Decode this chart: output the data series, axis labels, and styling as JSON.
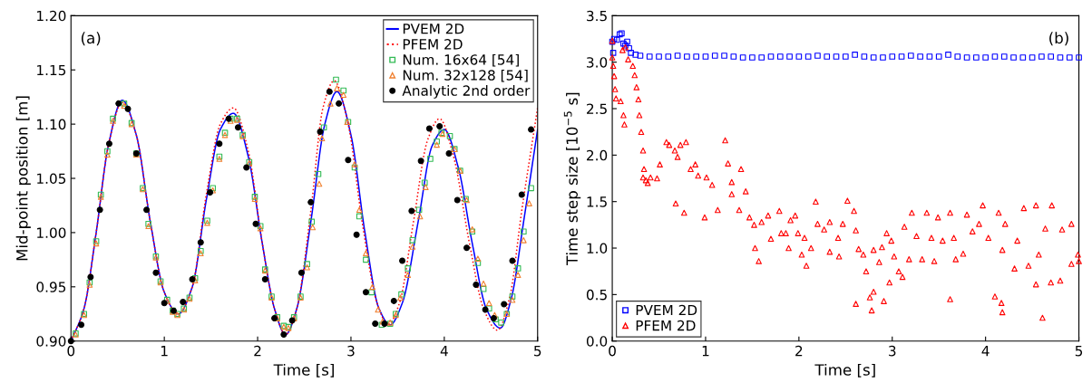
{
  "chart_data": [
    {
      "type": "line",
      "xlabel": "Time [s]",
      "ylabel": "Mid-point position [m]",
      "annotations": [
        "(a)"
      ],
      "xlim": [
        0,
        5
      ],
      "ylim": [
        0.9,
        1.2
      ],
      "xticks": [
        0,
        1,
        2,
        3,
        4,
        5
      ],
      "yticks": [
        {
          "value": 0.9,
          "label": "0.90"
        },
        {
          "value": 0.95,
          "label": "0.95"
        },
        {
          "value": 1.0,
          "label": "1.00"
        },
        {
          "value": 1.05,
          "label": "1.05"
        },
        {
          "value": 1.1,
          "label": "1.10"
        },
        {
          "value": 1.15,
          "label": "1.15"
        },
        {
          "value": 1.2,
          "label": "1.20"
        }
      ],
      "grid": false,
      "legend": "top right",
      "series": [
        {
          "name": "PVEM 2D",
          "color": "#0000ff",
          "line_style": "solid",
          "marker": "none",
          "x": [
            0,
            0.14,
            0.27,
            0.4,
            0.55,
            0.7,
            0.85,
            1.0,
            1.15,
            1.3,
            1.45,
            1.6,
            1.74,
            1.9,
            2.05,
            2.18,
            2.3,
            2.42,
            2.57,
            2.72,
            2.85,
            3.0,
            3.15,
            3.3,
            3.42,
            3.55,
            3.72,
            3.87,
            4.0,
            4.15,
            4.3,
            4.45,
            4.6,
            4.72,
            4.85,
            5.0
          ],
          "values": [
            0.9,
            0.93,
            1.0,
            1.08,
            1.122,
            1.09,
            1.01,
            0.945,
            0.925,
            0.95,
            1.03,
            1.095,
            1.11,
            1.07,
            0.99,
            0.93,
            0.906,
            0.93,
            1.01,
            1.1,
            1.13,
            1.09,
            1.0,
            0.93,
            0.915,
            0.935,
            1.01,
            1.08,
            1.095,
            1.06,
            0.99,
            0.93,
            0.912,
            0.94,
            1.01,
            1.095
          ]
        },
        {
          "name": "PFEM 2D",
          "color": "#ff0000",
          "line_style": "dotted",
          "marker": "none",
          "x": [
            0,
            0.14,
            0.27,
            0.4,
            0.55,
            0.7,
            0.85,
            1.0,
            1.15,
            1.3,
            1.45,
            1.6,
            1.74,
            1.9,
            2.05,
            2.18,
            2.3,
            2.42,
            2.57,
            2.7,
            2.82,
            2.97,
            3.12,
            3.28,
            3.4,
            3.52,
            3.67,
            3.82,
            3.95,
            4.1,
            4.27,
            4.42,
            4.57,
            4.7,
            4.83,
            5.0
          ],
          "values": [
            0.9,
            0.93,
            1.0,
            1.08,
            1.12,
            1.09,
            1.01,
            0.945,
            0.925,
            0.95,
            1.035,
            1.1,
            1.115,
            1.075,
            0.99,
            0.93,
            0.906,
            0.93,
            1.02,
            1.115,
            1.14,
            1.1,
            1.01,
            0.935,
            0.915,
            0.935,
            1.01,
            1.085,
            1.105,
            1.07,
            0.99,
            0.93,
            0.91,
            0.94,
            1.02,
            1.115
          ]
        },
        {
          "name": "Num. 16x64 [54]",
          "type": "scatter",
          "color": "#33bb55",
          "marker": "square",
          "x": [
            0.05,
            0.14,
            0.2,
            0.27,
            0.32,
            0.39,
            0.45,
            0.57,
            0.65,
            0.7,
            0.77,
            0.83,
            0.91,
            0.96,
            1.03,
            1.09,
            1.14,
            1.21,
            1.27,
            1.33,
            1.39,
            1.46,
            1.52,
            1.59,
            1.65,
            1.71,
            1.78,
            1.84,
            1.91,
            1.97,
            2.03,
            2.08,
            2.15,
            2.21,
            2.28,
            2.33,
            2.39,
            2.46,
            2.53,
            2.58,
            2.65,
            2.71,
            2.84,
            2.92,
            2.97,
            3.04,
            3.09,
            3.16,
            3.22,
            3.33,
            3.42,
            3.48,
            3.54,
            3.61,
            3.66,
            3.73,
            3.79,
            3.85,
            3.92,
            3.97,
            4.06,
            4.11,
            4.17,
            4.23,
            4.3,
            4.36,
            4.42,
            4.48,
            4.55,
            4.61,
            4.67,
            4.73,
            4.79,
            4.85,
            4.93
          ],
          "values": [
            0.907,
            0.925,
            0.954,
            0.992,
            1.035,
            1.075,
            1.105,
            1.119,
            1.101,
            1.073,
            1.041,
            1.008,
            0.978,
            0.955,
            0.938,
            0.928,
            0.925,
            0.93,
            0.94,
            0.958,
            0.983,
            1.011,
            1.041,
            1.07,
            1.092,
            1.105,
            1.105,
            1.09,
            1.065,
            1.033,
            1.006,
            0.966,
            0.941,
            0.922,
            0.914,
            0.913,
            0.922,
            0.941,
            0.971,
            1.01,
            1.054,
            1.097,
            1.141,
            1.131,
            1.102,
            1.06,
            1.015,
            0.975,
            0.945,
            0.915,
            0.916,
            0.925,
            0.943,
            0.967,
            0.993,
            1.021,
            1.046,
            1.068,
            1.084,
            1.092,
            1.089,
            1.077,
            1.057,
            1.031,
            1.001,
            0.972,
            0.948,
            0.93,
            0.92,
            0.917,
            0.925,
            0.941,
            0.967,
            1.001,
            1.041
          ]
        },
        {
          "name": "Num. 32x128 [54]",
          "type": "scatter",
          "color": "#f08030",
          "marker": "triangle",
          "x": [
            0.05,
            0.14,
            0.2,
            0.27,
            0.32,
            0.39,
            0.45,
            0.57,
            0.65,
            0.7,
            0.77,
            0.83,
            0.91,
            0.96,
            1.03,
            1.09,
            1.14,
            1.21,
            1.27,
            1.33,
            1.39,
            1.46,
            1.52,
            1.59,
            1.65,
            1.71,
            1.78,
            1.84,
            1.91,
            1.97,
            2.03,
            2.08,
            2.15,
            2.21,
            2.28,
            2.33,
            2.39,
            2.46,
            2.53,
            2.59,
            2.66,
            2.69,
            2.78,
            2.85,
            2.92,
            2.96,
            3.04,
            3.09,
            3.16,
            3.23,
            3.29,
            3.34,
            3.42,
            3.48,
            3.53,
            3.61,
            3.66,
            3.74,
            3.8,
            3.92,
            3.98,
            4.11,
            4.17,
            4.24,
            4.3,
            4.36,
            4.42,
            4.48,
            4.54,
            4.67,
            4.73,
            4.79,
            4.85,
            4.91
          ],
          "values": [
            0.906,
            0.924,
            0.952,
            0.99,
            1.033,
            1.072,
            1.103,
            1.117,
            1.1,
            1.072,
            1.04,
            1.006,
            0.977,
            0.954,
            0.937,
            0.927,
            0.924,
            0.929,
            0.939,
            0.956,
            0.981,
            1.009,
            1.039,
            1.068,
            1.09,
            1.103,
            1.104,
            1.089,
            1.064,
            1.031,
            1.004,
            0.965,
            0.94,
            0.921,
            0.913,
            0.912,
            0.921,
            0.94,
            0.968,
            1.005,
            1.045,
            1.087,
            1.119,
            1.133,
            1.127,
            1.102,
            1.063,
            1.021,
            0.981,
            0.95,
            0.929,
            0.918,
            0.917,
            0.924,
            0.94,
            0.961,
            0.987,
            1.015,
            1.042,
            1.081,
            1.091,
            1.077,
            1.057,
            1.03,
            1.003,
            0.976,
            0.953,
            0.935,
            0.924,
            0.925,
            0.938,
            0.961,
            0.993,
            1.027
          ]
        },
        {
          "name": "Analytic 2nd order",
          "type": "scatter",
          "color": "#000000",
          "marker": "circle",
          "x": [
            0,
            0.11,
            0.21,
            0.31,
            0.41,
            0.51,
            0.61,
            0.7,
            0.81,
            0.91,
            1.0,
            1.1,
            1.2,
            1.3,
            1.39,
            1.49,
            1.59,
            1.69,
            1.79,
            1.88,
            1.98,
            2.08,
            2.18,
            2.28,
            2.37,
            2.47,
            2.57,
            2.67,
            2.77,
            2.87,
            2.97,
            3.06,
            3.16,
            3.26,
            3.36,
            3.46,
            3.55,
            3.65,
            3.75,
            3.84,
            3.95,
            4.05,
            4.14,
            4.24,
            4.34,
            4.44,
            4.53,
            4.64,
            4.73,
            4.83,
            4.93
          ],
          "values": [
            0.9,
            0.915,
            0.959,
            1.021,
            1.082,
            1.119,
            1.114,
            1.073,
            1.021,
            0.963,
            0.935,
            0.928,
            0.936,
            0.957,
            0.991,
            1.037,
            1.082,
            1.105,
            1.097,
            1.06,
            1.008,
            0.957,
            0.921,
            0.906,
            0.919,
            0.963,
            1.028,
            1.093,
            1.13,
            1.119,
            1.067,
            0.998,
            0.945,
            0.916,
            0.916,
            0.937,
            0.974,
            1.02,
            1.066,
            1.096,
            1.098,
            1.073,
            1.03,
            0.986,
            0.952,
            0.929,
            0.921,
            0.934,
            0.974,
            1.035,
            1.095
          ]
        }
      ]
    },
    {
      "type": "scatter",
      "xlabel": "Time [s]",
      "ylabel": "Time step size [10$^{−5}$ s]",
      "annotations": [
        "(b)"
      ],
      "xlim": [
        0,
        5
      ],
      "ylim": [
        0,
        3.5
      ],
      "xticks": [
        0,
        1,
        2,
        3,
        4,
        5
      ],
      "yticks": [
        {
          "value": 0,
          "label": "0.0"
        },
        {
          "value": 0.5,
          "label": "0.5"
        },
        {
          "value": 1,
          "label": "1.0"
        },
        {
          "value": 1.5,
          "label": "1.5"
        },
        {
          "value": 2,
          "label": "2.0"
        },
        {
          "value": 2.5,
          "label": "2.5"
        },
        {
          "value": 3,
          "label": "3.0"
        },
        {
          "value": 3.5,
          "label": "3.5"
        }
      ],
      "grid": false,
      "legend": "bottom left",
      "series": [
        {
          "name": "PVEM 2D",
          "color": "#0000ff",
          "marker": "square",
          "x": [
            0,
            0.01,
            0.02,
            0.05,
            0.08,
            0.1,
            0.12,
            0.14,
            0.16,
            0.18,
            0.2,
            0.25,
            0.3,
            0.4,
            0.5,
            0.6,
            0.7,
            0.8,
            0.9,
            1.0,
            1.1,
            1.2,
            1.3,
            1.4,
            1.5,
            1.6,
            1.7,
            1.8,
            1.9,
            2.0,
            2.1,
            2.2,
            2.3,
            2.4,
            2.5,
            2.6,
            2.7,
            2.8,
            2.9,
            3.0,
            3.1,
            3.2,
            3.3,
            3.4,
            3.5,
            3.6,
            3.7,
            3.8,
            3.9,
            4.0,
            4.1,
            4.2,
            4.3,
            4.4,
            4.5,
            4.6,
            4.7,
            4.8,
            4.9,
            5.0
          ],
          "values": [
            3.22,
            3.1,
            3.25,
            3.24,
            3.3,
            3.31,
            3.2,
            3.18,
            3.22,
            3.15,
            3.1,
            3.08,
            3.07,
            3.06,
            3.06,
            3.06,
            3.07,
            3.06,
            3.06,
            3.06,
            3.07,
            3.07,
            3.06,
            3.05,
            3.05,
            3.05,
            3.06,
            3.06,
            3.06,
            3.06,
            3.06,
            3.07,
            3.06,
            3.06,
            3.06,
            3.08,
            3.06,
            3.05,
            3.05,
            3.06,
            3.06,
            3.07,
            3.06,
            3.06,
            3.06,
            3.08,
            3.06,
            3.05,
            3.05,
            3.05,
            3.06,
            3.06,
            3.05,
            3.05,
            3.05,
            3.06,
            3.06,
            3.05,
            3.05,
            3.05
          ]
        },
        {
          "name": "PFEM 2D",
          "color": "#ff0000",
          "marker": "triangle",
          "x": [
            0,
            0,
            0.01,
            0.02,
            0.03,
            0.04,
            0.09,
            0.11,
            0.12,
            0.13,
            0.14,
            0.17,
            0.22,
            0.24,
            0.26,
            0.28,
            0.29,
            0.31,
            0.33,
            0.33,
            0.34,
            0.36,
            0.38,
            0.41,
            0.48,
            0.51,
            0.58,
            0.61,
            0.67,
            0.68,
            0.7,
            0.73,
            0.77,
            0.79,
            0.84,
            0.89,
            0.92,
            0.99,
            1.01,
            1.07,
            1.13,
            1.21,
            1.24,
            1.28,
            1.28,
            1.36,
            1.38,
            1.43,
            1.47,
            1.52,
            1.53,
            1.57,
            1.6,
            1.67,
            1.7,
            1.79,
            1.81,
            1.86,
            1.89,
            1.91,
            1.96,
            1.99,
            2.03,
            2.06,
            2.08,
            2.13,
            2.18,
            2.2,
            2.27,
            2.33,
            2.33,
            2.42,
            2.43,
            2.47,
            2.52,
            2.59,
            2.61,
            2.61,
            2.64,
            2.69,
            2.72,
            2.76,
            2.78,
            2.8,
            2.8,
            2.86,
            2.89,
            2.91,
            2.94,
            2.97,
            2.99,
            3.02,
            3.07,
            3.11,
            3.13,
            3.18,
            3.21,
            3.26,
            3.32,
            3.37,
            3.42,
            3.45,
            3.49,
            3.54,
            3.62,
            3.62,
            3.66,
            3.68,
            3.76,
            3.8,
            3.86,
            3.93,
            3.97,
            4.03,
            4.1,
            4.14,
            4.17,
            4.18,
            4.18,
            4.21,
            4.31,
            4.34,
            4.41,
            4.46,
            4.54,
            4.54,
            4.57,
            4.61,
            4.64,
            4.7,
            4.71,
            4.8,
            4.82,
            4.92,
            4.92,
            4.99,
            5.0
          ],
          "values": [
            3.23,
            3.05,
            2.96,
            2.85,
            2.71,
            2.61,
            2.58,
            3.13,
            2.43,
            2.33,
            3.16,
            3.03,
            2.96,
            2.86,
            2.73,
            2.6,
            2.43,
            2.25,
            2.05,
            1.76,
            1.85,
            1.73,
            1.7,
            1.76,
            1.75,
            1.9,
            2.14,
            2.11,
            2.05,
            1.48,
            1.98,
            2.11,
            1.38,
            2.14,
            1.85,
            1.9,
            1.78,
            1.33,
            1.76,
            1.68,
            1.41,
            2.16,
            1.91,
            1.71,
            1.58,
            1.41,
            1.85,
            1.61,
            1.33,
            1.25,
            1.0,
            0.86,
            1.28,
            1.35,
            1.1,
            1.4,
            1.16,
            1.16,
            1.0,
            1.3,
            1.35,
            1.16,
            0.93,
            1.11,
            0.81,
            1.0,
            1.5,
            1.26,
            1.2,
            1.28,
            0.96,
            1.11,
            0.91,
            1.26,
            1.51,
            1.4,
            1.19,
            0.4,
            0.99,
            0.93,
            0.75,
            0.47,
            0.33,
            0.53,
            0.98,
            0.85,
            1.01,
            0.43,
            1.16,
            0.63,
            1.08,
            0.91,
            0.75,
            0.69,
            1.23,
            0.88,
            1.38,
            1.13,
            0.88,
            1.38,
            1.11,
            0.86,
            1.33,
            1.08,
            1.38,
            0.45,
            1.11,
            0.88,
            0.94,
            1.36,
            1.18,
            1.26,
            1.46,
            1.11,
            0.48,
            1.38,
            0.41,
            0.31,
            0.98,
            1.26,
            0.78,
            1.08,
            1.43,
            0.81,
            0.61,
            1.46,
            0.93,
            0.25,
            1.21,
            0.63,
            1.46,
            0.65,
            1.2,
            1.26,
            0.83,
            0.93,
            0.86
          ]
        }
      ]
    }
  ]
}
